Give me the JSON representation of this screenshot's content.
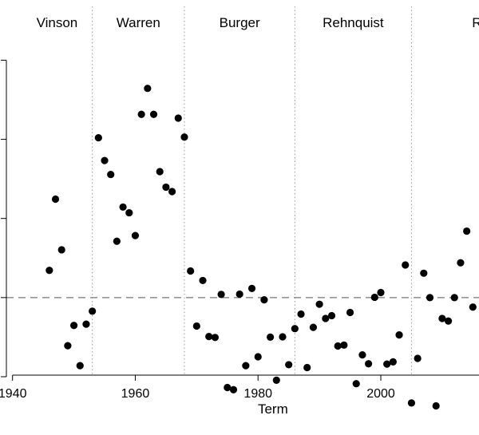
{
  "chart_data": {
    "type": "scatter",
    "xlabel": "Term",
    "ylabel": "",
    "xlim": [
      1939,
      2016
    ],
    "ylim": [
      -0.245,
      0.92
    ],
    "x_ticks": [
      1940,
      1960,
      1980,
      2000
    ],
    "x_tick_labels": [
      "1940",
      "1960",
      "1980",
      "2000"
    ],
    "y_ticks": [
      -0.25,
      0.0,
      0.25,
      0.5,
      0.75
    ],
    "reference_line_y": 0.0,
    "eras": [
      {
        "name": "Vinson",
        "start": 1946
      },
      {
        "name": "Warren",
        "start": 1953
      },
      {
        "name": "Burger",
        "start": 1969
      },
      {
        "name": "Rehnquist",
        "start": 1986
      },
      {
        "name": "Robe",
        "start": 2005
      }
    ],
    "era_boundaries": [
      1953,
      1968,
      1986,
      2005
    ],
    "grid": false,
    "x": [
      1946,
      1947,
      1948,
      1949,
      1950,
      1951,
      1952,
      1953,
      1954,
      1955,
      1956,
      1957,
      1958,
      1959,
      1960,
      1961,
      1962,
      1963,
      1964,
      1965,
      1966,
      1967,
      1968,
      1969,
      1970,
      1971,
      1972,
      1973,
      1974,
      1975,
      1976,
      1977,
      1978,
      1979,
      1980,
      1981,
      1982,
      1983,
      1984,
      1985,
      1986,
      1987,
      1988,
      1989,
      1990,
      1991,
      1992,
      1993,
      1994,
      1995,
      1996,
      1997,
      1998,
      1999,
      2000,
      2001,
      2002,
      2003,
      2004,
      2005,
      2006,
      2007,
      2008,
      2009,
      2010,
      2011,
      2012,
      2013,
      2014,
      2015
    ],
    "y": [
      0.086,
      0.311,
      0.151,
      -0.152,
      -0.088,
      -0.215,
      -0.084,
      -0.043,
      0.505,
      0.433,
      0.389,
      0.178,
      0.286,
      0.268,
      0.196,
      0.579,
      0.661,
      0.579,
      0.398,
      0.349,
      0.335,
      0.567,
      0.507,
      0.084,
      -0.09,
      0.054,
      -0.123,
      -0.126,
      0.01,
      -0.284,
      -0.291,
      0.011,
      -0.215,
      0.029,
      -0.187,
      -0.007,
      -0.125,
      -0.261,
      -0.124,
      -0.212,
      -0.098,
      -0.052,
      -0.221,
      -0.094,
      -0.021,
      -0.066,
      -0.057,
      -0.153,
      -0.15,
      -0.047,
      -0.272,
      -0.181,
      -0.209,
      0.001,
      0.016,
      -0.21,
      -0.203,
      -0.118,
      0.103,
      -0.333,
      -0.192,
      0.077,
      0.0,
      -0.342,
      -0.066,
      -0.074,
      0.0,
      0.11,
      0.21,
      -0.03
    ]
  }
}
